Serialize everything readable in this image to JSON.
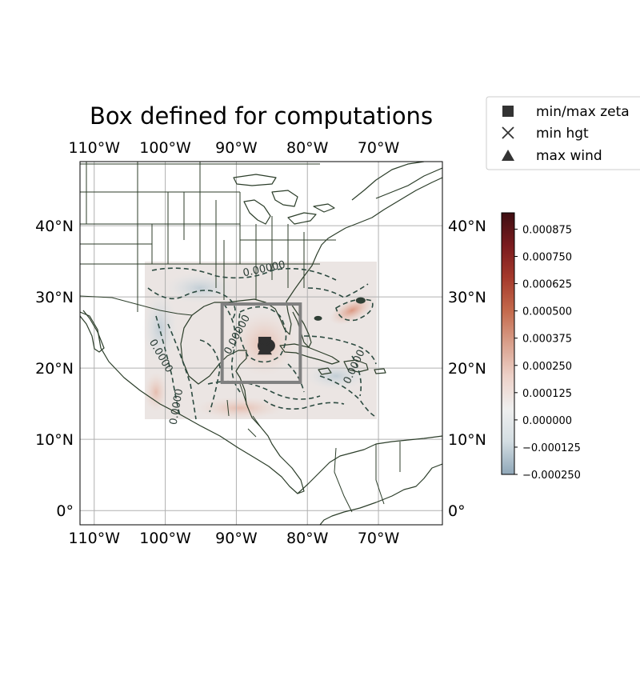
{
  "title": "Box defined for computations",
  "map": {
    "lon_range": [
      -112,
      -61
    ],
    "lat_range": [
      -2,
      49
    ],
    "lon_ticks": [
      {
        "value": -110,
        "label": "110°W"
      },
      {
        "value": -100,
        "label": "100°W"
      },
      {
        "value": -90,
        "label": "90°W"
      },
      {
        "value": -80,
        "label": "80°W"
      },
      {
        "value": -70,
        "label": "70°W"
      }
    ],
    "lat_ticks": [
      {
        "value": 0,
        "label": "0°"
      },
      {
        "value": 10,
        "label": "10°N"
      },
      {
        "value": 20,
        "label": "20°N"
      },
      {
        "value": 30,
        "label": "30°N"
      },
      {
        "value": 40,
        "label": "40°N"
      }
    ],
    "gridlines": true,
    "data_extent": {
      "lon": [
        -103,
        -71
      ],
      "lat": [
        13,
        35
      ]
    },
    "box": {
      "lon": [
        -92,
        -81
      ],
      "lat": [
        18,
        29
      ]
    },
    "contour_labels": [
      {
        "text": "0.00000",
        "lon": -86,
        "lat": 33.5,
        "angle": -12
      },
      {
        "text": "0.00000",
        "lon": -89.5,
        "lat": 24.5,
        "angle": -62
      },
      {
        "text": "0.0000",
        "lon": -101,
        "lat": 21.5,
        "angle": 60
      },
      {
        "text": "0.0000",
        "lon": -98,
        "lat": 14.5,
        "angle": -80
      },
      {
        "text": "0.0000",
        "lon": -73,
        "lat": 20,
        "angle": -65
      }
    ],
    "markers": [
      {
        "type": "min/max zeta",
        "lon": -86,
        "lat": 23.5
      },
      {
        "type": "min hgt",
        "lon": -86,
        "lat": 23
      },
      {
        "type": "max wind",
        "lon": -86,
        "lat": 22.8
      }
    ],
    "feature_color": "#2c3e2a",
    "box_color": "#808080"
  },
  "colorbar": {
    "vmin": -0.00025,
    "vmax": 0.00095,
    "ticks": [
      {
        "value": 0.000875,
        "label": "0.000875"
      },
      {
        "value": 0.00075,
        "label": "0.000750"
      },
      {
        "value": 0.000625,
        "label": "0.000625"
      },
      {
        "value": 0.0005,
        "label": "0.000500"
      },
      {
        "value": 0.000375,
        "label": "0.000375"
      },
      {
        "value": 0.00025,
        "label": "0.000250"
      },
      {
        "value": 0.000125,
        "label": "0.000125"
      },
      {
        "value": 0.0,
        "label": "0.000000"
      },
      {
        "value": -0.000125,
        "label": "−0.000125"
      },
      {
        "value": -0.00025,
        "label": "−0.000250"
      }
    ],
    "colors": [
      "#8fa7b8",
      "#d3dde2",
      "#efefef",
      "#edd1c8",
      "#d9a08c",
      "#c46a4c",
      "#a53a2c",
      "#7a1b1e",
      "#3e0e12"
    ]
  },
  "legend": {
    "items": [
      {
        "marker": "square",
        "label": "min/max zeta"
      },
      {
        "marker": "x",
        "label": "min hgt"
      },
      {
        "marker": "triangle",
        "label": "max wind"
      }
    ]
  }
}
